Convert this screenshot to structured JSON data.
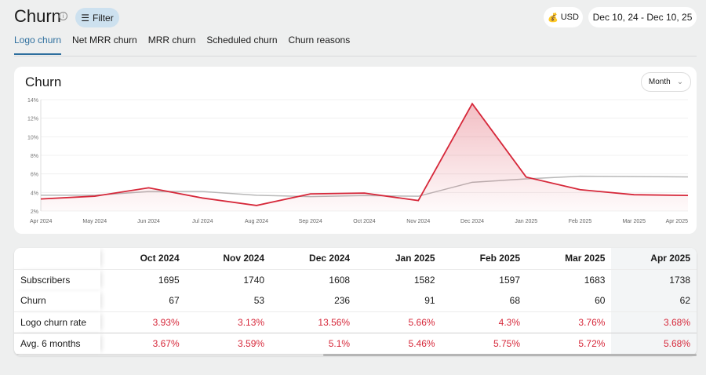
{
  "header": {
    "title": "Churn",
    "info_icon": "info-icon",
    "filter_label": "Filter",
    "currency": "USD",
    "date_range": "Dec 10, 24 - Dec 10, 25"
  },
  "tabs": [
    {
      "label": "Logo churn",
      "active": true
    },
    {
      "label": "Net MRR churn"
    },
    {
      "label": "MRR churn"
    },
    {
      "label": "Scheduled churn"
    },
    {
      "label": "Churn reasons"
    }
  ],
  "card": {
    "title": "Churn",
    "period_select": "Month"
  },
  "chart_data": {
    "type": "line",
    "x": [
      "Apr 2024",
      "May 2024",
      "Jun 2024",
      "Jul 2024",
      "Aug 2024",
      "Sep 2024",
      "Oct 2024",
      "Nov 2024",
      "Dec 2024",
      "Jan 2025",
      "Feb 2025",
      "Mar 2025",
      "Apr 2025"
    ],
    "yticks": [
      "2%",
      "4%",
      "6%",
      "8%",
      "10%",
      "12%",
      "14%"
    ],
    "ylim": [
      2,
      14
    ],
    "grid": true,
    "series": [
      {
        "values": [
          3.3,
          3.6,
          4.5,
          3.4,
          2.6,
          3.85,
          3.93,
          3.13,
          13.56,
          5.66,
          4.3,
          3.76,
          3.68
        ],
        "color": "#d6283a",
        "fill": true
      },
      {
        "values": [
          3.7,
          3.7,
          4.1,
          4.1,
          3.7,
          3.55,
          3.67,
          3.59,
          5.1,
          5.46,
          5.75,
          5.72,
          5.68
        ],
        "color": "#b8b8b8"
      }
    ]
  },
  "table": {
    "columns": [
      "Oct 2024",
      "Nov 2024",
      "Dec 2024",
      "Jan 2025",
      "Feb 2025",
      "Mar 2025",
      "Apr 2025"
    ],
    "rows": [
      {
        "label": "Subscribers",
        "values": [
          "1695",
          "1740",
          "1608",
          "1582",
          "1597",
          "1683",
          "1738"
        ]
      },
      {
        "label": "Churn",
        "values": [
          "67",
          "53",
          "236",
          "91",
          "68",
          "60",
          "62"
        ]
      },
      {
        "label": "Logo churn rate",
        "values": [
          "3.93%",
          "3.13%",
          "13.56%",
          "5.66%",
          "4.3%",
          "3.76%",
          "3.68%"
        ],
        "red": true
      },
      {
        "label": "Avg. 6 months",
        "values": [
          "3.67%",
          "3.59%",
          "5.1%",
          "5.46%",
          "5.75%",
          "5.72%",
          "5.68%"
        ],
        "red": true
      }
    ]
  }
}
